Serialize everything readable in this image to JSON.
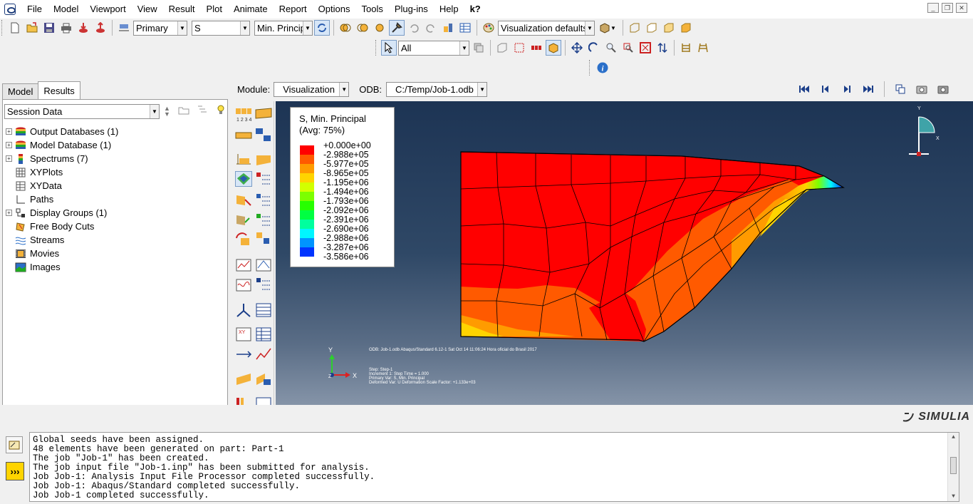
{
  "menu": [
    "File",
    "Model",
    "Viewport",
    "View",
    "Result",
    "Plot",
    "Animate",
    "Report",
    "Options",
    "Tools",
    "Plug-ins",
    "Help",
    "k?"
  ],
  "toolbar": {
    "primary": "Primary",
    "variable": "S",
    "component": "Min. Principal",
    "vis_defaults": "Visualization defaults",
    "select_filter": "All"
  },
  "module": {
    "label": "Module:",
    "value": "Visualization",
    "odb_label": "ODB:",
    "odb_value": "C:/Temp/Job-1.odb"
  },
  "tabs": [
    "Model",
    "Results"
  ],
  "session": "Session Data",
  "tree": [
    {
      "label": "Output Databases (1)",
      "exp": true,
      "icon": "database-icon"
    },
    {
      "label": "Model Database (1)",
      "exp": true,
      "icon": "database-icon"
    },
    {
      "label": "Spectrums (7)",
      "exp": true,
      "icon": "spectrum-icon"
    },
    {
      "label": "XYPlots",
      "exp": false,
      "icon": "grid-icon"
    },
    {
      "label": "XYData",
      "exp": false,
      "icon": "table-icon"
    },
    {
      "label": "Paths",
      "exp": false,
      "icon": "path-icon"
    },
    {
      "label": "Display Groups (1)",
      "exp": true,
      "icon": "display-group-icon"
    },
    {
      "label": "Free Body Cuts",
      "exp": false,
      "icon": "free-body-icon"
    },
    {
      "label": "Streams",
      "exp": false,
      "icon": "stream-icon"
    },
    {
      "label": "Movies",
      "exp": false,
      "icon": "movie-icon"
    },
    {
      "label": "Images",
      "exp": false,
      "icon": "image-icon"
    }
  ],
  "legend": {
    "title1": "S, Min. Principal",
    "title2": "(Avg: 75%)",
    "values": [
      "+0.000e+00",
      "-2.988e+05",
      "-5.977e+05",
      "-8.965e+05",
      "-1.195e+06",
      "-1.494e+06",
      "-1.793e+06",
      "-2.092e+06",
      "-2.391e+06",
      "-2.690e+06",
      "-2.988e+06",
      "-3.287e+06",
      "-3.586e+06"
    ],
    "colors": [
      "#ff0000",
      "#ff5a00",
      "#ff9b00",
      "#ffd400",
      "#d2ff00",
      "#7cff00",
      "#27ff00",
      "#00ff42",
      "#00ff9e",
      "#00f6ff",
      "#0094ff",
      "#0034ff",
      "#0000ff"
    ]
  },
  "viewport_info": {
    "odb": "ODB: Job-1.odb    Abaqus/Standard 6.12-1    Sat Oct 14 11:06:24 Hora oficial do Brasil 2017",
    "step": "Step: Step-1",
    "increment": "Increment     1: Step Time =    1.000",
    "primary": "Primary Var: S, Min. Principal",
    "deformed": "Deformed Var: U   Deformation Scale Factor: +1.133e+03"
  },
  "triad": {
    "x": "X",
    "y": "Y",
    "z": "Z"
  },
  "brand": "SIMULIA",
  "messages": [
    "Global seeds have been assigned.",
    "48 elements have been generated on part: Part-1",
    "The job \"Job-1\" has been created.",
    "The job input file \"Job-1.inp\" has been submitted for analysis.",
    "Job Job-1: Analysis Input File Processor completed successfully.",
    "Job Job-1: Abaqus/Standard completed successfully.",
    "Job Job-1 completed successfully."
  ]
}
